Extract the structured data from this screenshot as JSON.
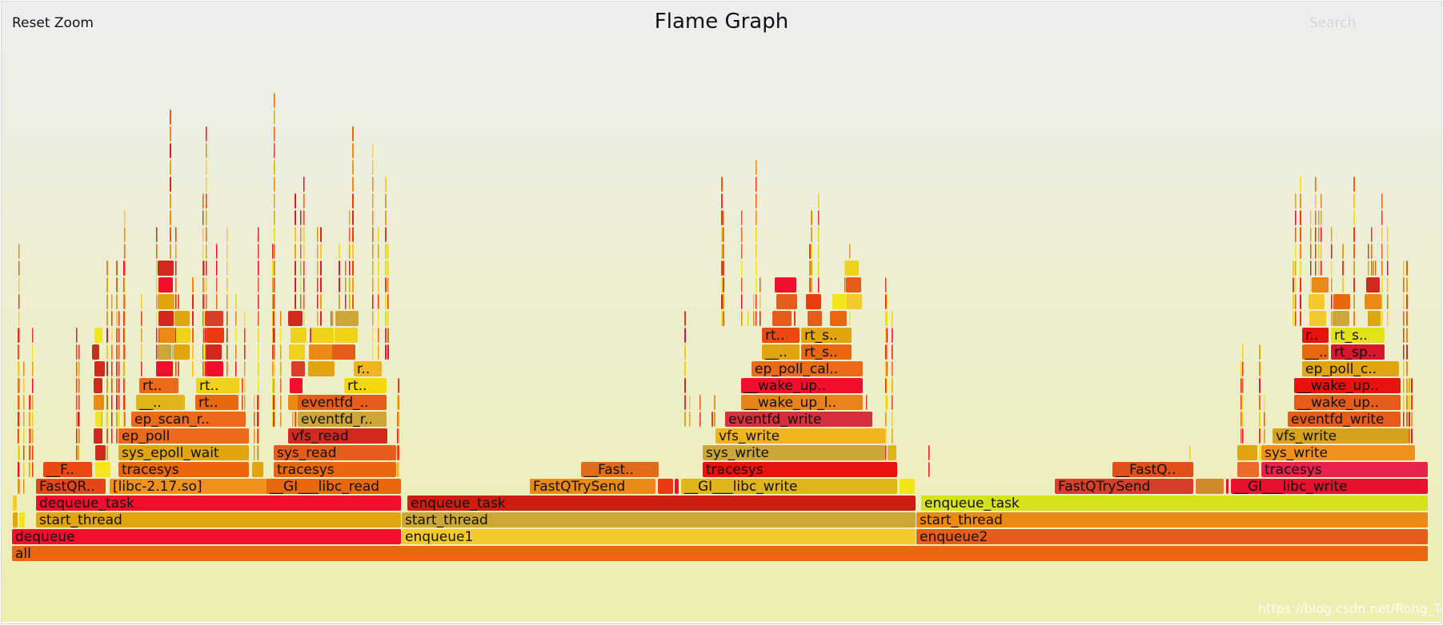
{
  "header": {
    "title": "Flame Graph",
    "reset_zoom_label": "Reset Zoom",
    "search_label": "Search"
  },
  "watermark": "https://blog.csdn.net/Rong_Toa",
  "chart_data": {
    "type": "flame",
    "title": "Flame Graph",
    "samples_total": 1770,
    "grid": false,
    "colors": {
      "background_top": "#eeeeee",
      "background_bottom": "#eeeeb0",
      "palette": [
        "#e8670f",
        "#f20f2e",
        "#f5c92c",
        "#e0a50f",
        "#d02a1e",
        "#ec3b12",
        "#f0d11c",
        "#e65c1a",
        "#cda63a",
        "#f2e41e",
        "#d6402b",
        "#ea8a15"
      ]
    },
    "frames": [
      {
        "name": "all",
        "depth": 0,
        "start": 0,
        "width": 1770,
        "color": "#e8670f"
      },
      {
        "name": "dequeue",
        "depth": 1,
        "start": 0,
        "width": 487,
        "color": "#f20f2e"
      },
      {
        "name": "enqueue1",
        "depth": 1,
        "start": 487,
        "width": 643,
        "color": "#f5c92c"
      },
      {
        "name": "enqueue2",
        "depth": 1,
        "start": 1130,
        "width": 640,
        "color": "#e65c1a"
      },
      {
        "name": "",
        "depth": 2,
        "start": 1,
        "width": 7,
        "color": "#e0a50f"
      },
      {
        "name": "",
        "depth": 2,
        "start": 9,
        "width": 8,
        "color": "#f2e41e"
      },
      {
        "name": "start_thread",
        "depth": 2,
        "start": 30,
        "width": 457,
        "color": "#e0a50f"
      },
      {
        "name": "start_thread",
        "depth": 2,
        "start": 487,
        "width": 643,
        "color": "#cda63a"
      },
      {
        "name": "start_thread",
        "depth": 2,
        "start": 1130,
        "width": 640,
        "color": "#ea8a15"
      },
      {
        "name": "",
        "depth": 3,
        "start": 1,
        "width": 6,
        "color": "#f5c92c"
      },
      {
        "name": "dequeue_task",
        "depth": 3,
        "start": 30,
        "width": 457,
        "color": "#f20f2e"
      },
      {
        "name": "enqueue_task",
        "depth": 3,
        "start": 494,
        "width": 636,
        "color": "#d01d12"
      },
      {
        "name": "enqueue_task",
        "depth": 3,
        "start": 1136,
        "width": 634,
        "color": "#d6e21c"
      },
      {
        "name": "FastQR..",
        "depth": 4,
        "start": 30,
        "width": 88,
        "color": "#e6471a"
      },
      {
        "name": "[libc-2.17.so]",
        "depth": 4,
        "start": 122,
        "width": 300,
        "color": "#f0911e"
      },
      {
        "name": "",
        "depth": 4,
        "start": 424,
        "width": 8,
        "color": "#d6402b"
      },
      {
        "name": "__GI___libc_read",
        "depth": 4,
        "start": 318,
        "width": 169,
        "color": "#e8670f",
        "xfix": 1
      },
      {
        "name": "FastQTrySend",
        "depth": 4,
        "start": 647,
        "width": 158,
        "color": "#ea8a15"
      },
      {
        "name": "",
        "depth": 4,
        "start": 807,
        "width": 20,
        "color": "#ec3b12"
      },
      {
        "name": "",
        "depth": 4,
        "start": 828,
        "width": 6,
        "color": "#f20f2e"
      },
      {
        "name": "__GI___libc_write",
        "depth": 4,
        "start": 836,
        "width": 271,
        "color": "#e0b41a"
      },
      {
        "name": "",
        "depth": 4,
        "start": 1109,
        "width": 20,
        "color": "#f2e41e"
      },
      {
        "name": "FastQTrySend",
        "depth": 4,
        "start": 1303,
        "width": 174,
        "color": "#d6402b"
      },
      {
        "name": "",
        "depth": 4,
        "start": 1479,
        "width": 36,
        "color": "#cf8a2c"
      },
      {
        "name": "",
        "depth": 4,
        "start": 1517,
        "width": 4,
        "color": "#f20f2e"
      },
      {
        "name": "__GI___libc_write",
        "depth": 4,
        "start": 1523,
        "width": 247,
        "color": "#e8122e"
      },
      {
        "name": "__F..",
        "depth": 5,
        "start": 39,
        "width": 62,
        "color": "#e84a12"
      },
      {
        "name": "",
        "depth": 5,
        "start": 104,
        "width": 20,
        "color": "#f5e41e"
      },
      {
        "name": "tracesys",
        "depth": 5,
        "start": 133,
        "width": 164,
        "color": "#e8670f"
      },
      {
        "name": "",
        "depth": 5,
        "start": 300,
        "width": 15,
        "color": "#e0a50f"
      },
      {
        "name": "tracesys",
        "depth": 5,
        "start": 327,
        "width": 154,
        "color": "#e8670f"
      },
      {
        "name": "__Fast..",
        "depth": 5,
        "start": 711,
        "width": 98,
        "color": "#e06c1a"
      },
      {
        "name": "tracesys",
        "depth": 5,
        "start": 863,
        "width": 244,
        "color": "#e8120f"
      },
      {
        "name": "__FastQ..",
        "depth": 5,
        "start": 1375,
        "width": 102,
        "color": "#e0501a"
      },
      {
        "name": "",
        "depth": 5,
        "start": 1531,
        "width": 28,
        "color": "#ec6a2a"
      },
      {
        "name": "tracesys",
        "depth": 5,
        "start": 1561,
        "width": 209,
        "color": "#e8224a"
      },
      {
        "name": "sys_epoll_wait",
        "depth": 6,
        "start": 133,
        "width": 164,
        "color": "#e0a50f"
      },
      {
        "name": "sys_read",
        "depth": 6,
        "start": 327,
        "width": 154,
        "color": "#e65c1a"
      },
      {
        "name": "sys_write",
        "depth": 6,
        "start": 863,
        "width": 229,
        "color": "#cda63a"
      },
      {
        "name": "",
        "depth": 6,
        "start": 1094,
        "width": 12,
        "color": "#e0b41a"
      },
      {
        "name": "sys_write",
        "depth": 6,
        "start": 1561,
        "width": 193,
        "color": "#f0911e"
      },
      {
        "name": "",
        "depth": 6,
        "start": 1531,
        "width": 26,
        "color": "#e0a50f"
      },
      {
        "name": "ep_poll",
        "depth": 7,
        "start": 133,
        "width": 164,
        "color": "#ec6a1a"
      },
      {
        "name": "vfs_read",
        "depth": 7,
        "start": 345,
        "width": 125,
        "color": "#d02a1e"
      },
      {
        "name": "vfs_write",
        "depth": 7,
        "start": 879,
        "width": 213,
        "color": "#f0b41e"
      },
      {
        "name": "vfs_write",
        "depth": 7,
        "start": 1575,
        "width": 171,
        "color": "#d6a21c"
      },
      {
        "name": "ep_scan_r..",
        "depth": 8,
        "start": 149,
        "width": 144,
        "color": "#ec6a1a"
      },
      {
        "name": "eventfd_r..",
        "depth": 8,
        "start": 357,
        "width": 112,
        "color": "#cda63a"
      },
      {
        "name": "eventfd_write",
        "depth": 8,
        "start": 891,
        "width": 185,
        "color": "#d6303e"
      },
      {
        "name": "eventfd_write",
        "depth": 8,
        "start": 1594,
        "width": 142,
        "color": "#e65c1a"
      },
      {
        "name": "__..",
        "depth": 9,
        "start": 155,
        "width": 62,
        "color": "#e0b41a"
      },
      {
        "name": "rt..",
        "depth": 9,
        "start": 229,
        "width": 55,
        "color": "#e8670f"
      },
      {
        "name": "eventfd_..",
        "depth": 9,
        "start": 357,
        "width": 112,
        "color": "#e65c1a"
      },
      {
        "name": "__wake_up_l..",
        "depth": 9,
        "start": 911,
        "width": 153,
        "color": "#e8821a"
      },
      {
        "name": "__wake_up..",
        "depth": 9,
        "start": 1602,
        "width": 134,
        "color": "#e65c1a"
      },
      {
        "name": "rt..",
        "depth": 10,
        "start": 159,
        "width": 50,
        "color": "#ec6a1a"
      },
      {
        "name": "rt..",
        "depth": 10,
        "start": 230,
        "width": 55,
        "color": "#f0d11c"
      },
      {
        "name": "rt..",
        "depth": 10,
        "start": 415,
        "width": 54,
        "color": "#f5d90e"
      },
      {
        "name": "__wake_up..",
        "depth": 10,
        "start": 911,
        "width": 153,
        "color": "#f20f2e"
      },
      {
        "name": "__wake_up..",
        "depth": 10,
        "start": 1602,
        "width": 134,
        "color": "#e8120f"
      },
      {
        "name": "r..",
        "depth": 11,
        "start": 427,
        "width": 36,
        "color": "#f0b41e"
      },
      {
        "name": "ep_poll_cal..",
        "depth": 11,
        "start": 924,
        "width": 140,
        "color": "#ec6a1a"
      },
      {
        "name": "ep_poll_c..",
        "depth": 11,
        "start": 1612,
        "width": 122,
        "color": "#e0a50f"
      },
      {
        "name": "__..",
        "depth": 12,
        "start": 937,
        "width": 48,
        "color": "#e0a50f"
      },
      {
        "name": "rt_s..",
        "depth": 12,
        "start": 986,
        "width": 64,
        "color": "#e8670f"
      },
      {
        "name": "__..",
        "depth": 12,
        "start": 1612,
        "width": 34,
        "color": "#e8670f"
      },
      {
        "name": "rt_sp..",
        "depth": 12,
        "start": 1648,
        "width": 68,
        "color": "#d6182e"
      },
      {
        "name": "rt..",
        "depth": 13,
        "start": 937,
        "width": 48,
        "color": "#e84a12"
      },
      {
        "name": "rt_s..",
        "depth": 13,
        "start": 986,
        "width": 64,
        "color": "#e0a50f"
      },
      {
        "name": "r..",
        "depth": 13,
        "start": 1612,
        "width": 34,
        "color": "#e8120f"
      },
      {
        "name": "rt_s..",
        "depth": 13,
        "start": 1648,
        "width": 68,
        "color": "#e2e21c"
      }
    ]
  }
}
